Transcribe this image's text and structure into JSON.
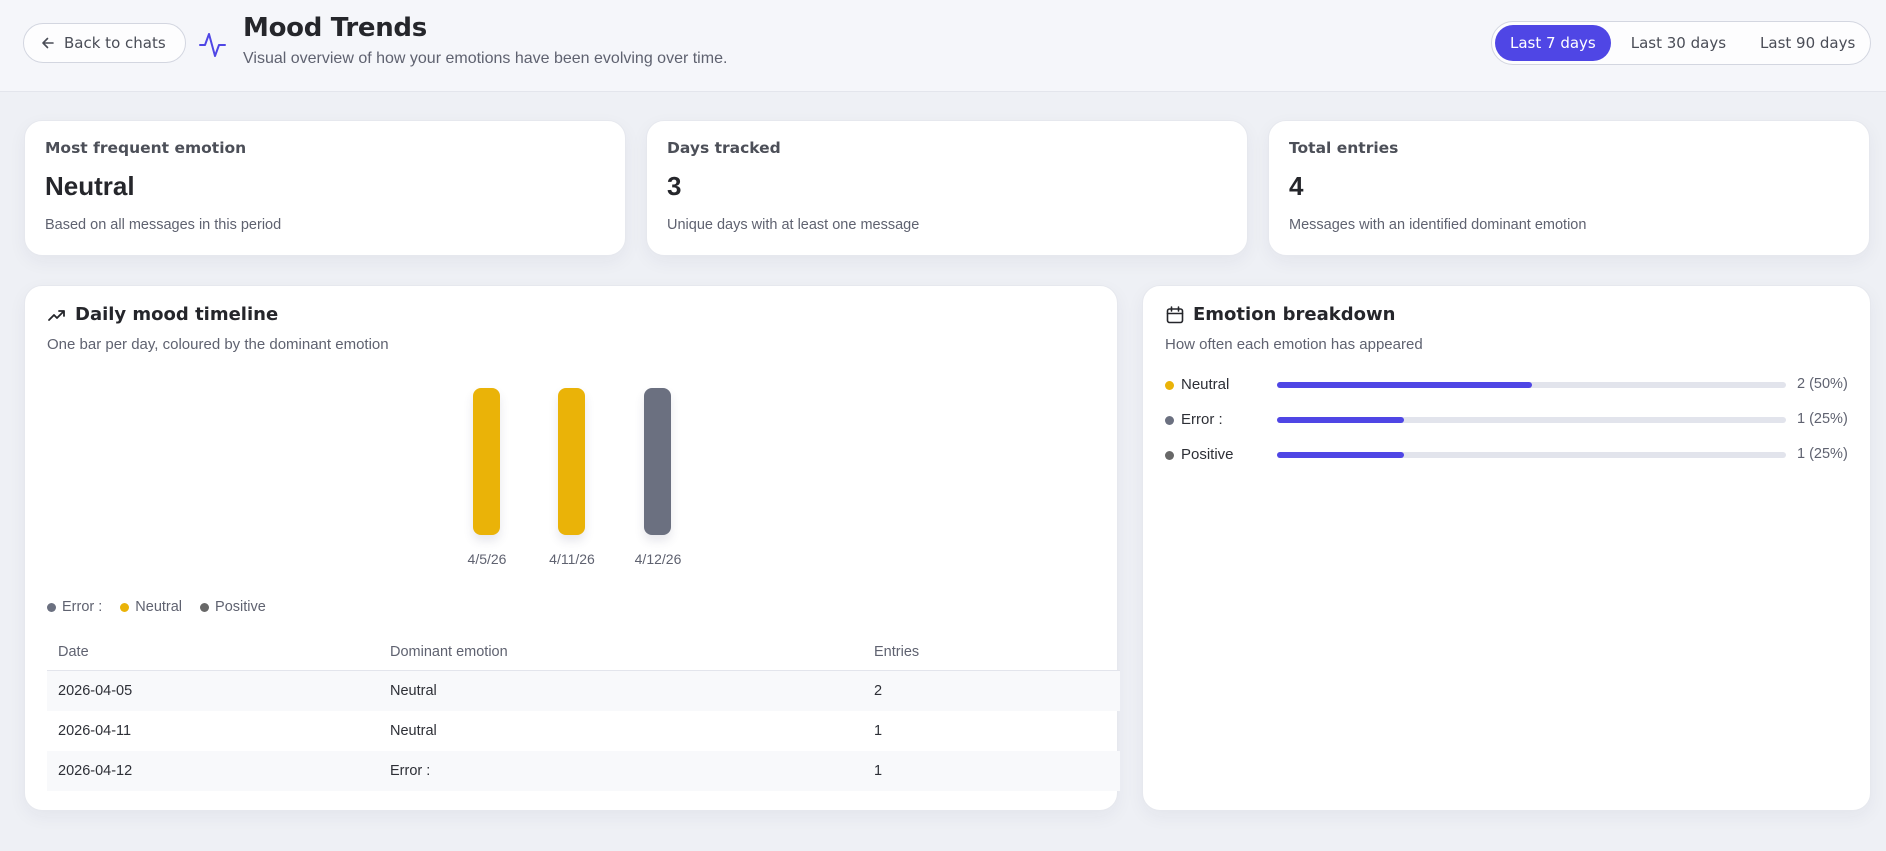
{
  "header": {
    "back_label": "Back to chats",
    "title": "Mood Trends",
    "subtitle": "Visual overview of how your emotions have been evolving over time.",
    "icons": {
      "back": "arrow-left-icon",
      "title": "pulse-activity-icon"
    },
    "ranges": [
      {
        "label": "Last 7 days",
        "active": true
      },
      {
        "label": "Last 30 days",
        "active": false
      },
      {
        "label": "Last 90 days",
        "active": false
      }
    ]
  },
  "stats": [
    {
      "label": "Most frequent emotion",
      "value": "Neutral",
      "note": "Based on all messages in this period"
    },
    {
      "label": "Days tracked",
      "value": "3",
      "note": "Unique days with at least one message"
    },
    {
      "label": "Total entries",
      "value": "4",
      "note": "Messages with an identified dominant emotion"
    }
  ],
  "timeline": {
    "title": "Daily mood timeline",
    "subtitle": "One bar per day, coloured by the dominant emotion",
    "icon": "trending-up-icon",
    "legend": [
      {
        "label": "Error :",
        "color": "#6b7080"
      },
      {
        "label": "Neutral",
        "color": "#eab308"
      },
      {
        "label": "Positive",
        "color": "#686868"
      }
    ],
    "table": {
      "headers": [
        "Date",
        "Dominant emotion",
        "Entries"
      ],
      "rows": [
        [
          "2026-04-05",
          "Neutral",
          "2"
        ],
        [
          "2026-04-11",
          "Neutral",
          "1"
        ],
        [
          "2026-04-12",
          "Error :",
          "1"
        ]
      ]
    }
  },
  "chart_data": {
    "type": "bar",
    "title": "Daily mood timeline",
    "subtitle": "One bar per day, coloured by the dominant emotion",
    "categories": [
      "4/5/26",
      "4/11/26",
      "4/12/26"
    ],
    "dominant_emotion": [
      "Neutral",
      "Neutral",
      "Error :"
    ],
    "colors": [
      "#eab308",
      "#eab308",
      "#6b7080"
    ],
    "values": [
      1,
      1,
      1
    ],
    "entries": [
      2,
      1,
      1
    ],
    "xlabel": "",
    "ylabel": "",
    "legend": [
      "Error :",
      "Neutral",
      "Positive"
    ],
    "legend_position": "bottom-left",
    "grid": false
  },
  "breakdown": {
    "title": "Emotion breakdown",
    "subtitle": "How often each emotion has appeared",
    "icon": "calendar-icon",
    "accent": "#4f46e5",
    "items": [
      {
        "label": "Neutral",
        "count": 2,
        "percent": 50,
        "value_text": "2 (50%)",
        "color": "#eab308"
      },
      {
        "label": "Error :",
        "count": 1,
        "percent": 25,
        "value_text": "1 (25%)",
        "color": "#6b7080"
      },
      {
        "label": "Positive",
        "count": 1,
        "percent": 25,
        "value_text": "1 (25%)",
        "color": "#686868"
      }
    ]
  }
}
